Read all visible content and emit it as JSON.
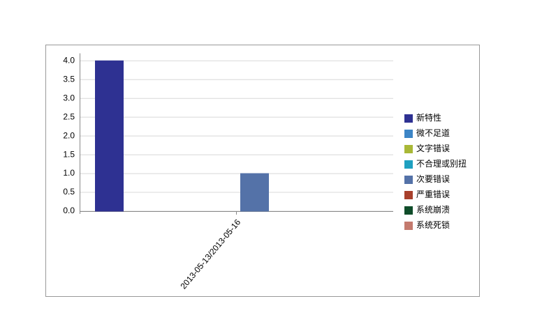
{
  "chart_data": {
    "type": "bar",
    "categories": [
      "2013-05-13/2013-05-16"
    ],
    "series": [
      {
        "name": "新特性",
        "color": "#2e3192",
        "values": [
          4
        ]
      },
      {
        "name": "微不足道",
        "color": "#3d85c6",
        "values": [
          0
        ]
      },
      {
        "name": "文字错误",
        "color": "#a9b837",
        "values": [
          0
        ]
      },
      {
        "name": "不合理或别扭",
        "color": "#1fa0c0",
        "values": [
          0
        ]
      },
      {
        "name": "次要错误",
        "color": "#5472a8",
        "values": [
          1
        ]
      },
      {
        "name": "严重错误",
        "color": "#a8402c",
        "values": [
          0
        ]
      },
      {
        "name": "系统崩溃",
        "color": "#0f4d2a",
        "values": [
          0
        ]
      },
      {
        "name": "系统死锁",
        "color": "#c47a6e",
        "values": [
          0
        ]
      }
    ],
    "ylim": [
      0,
      4.2
    ],
    "yticks": [
      {
        "value": 0,
        "label": "0.0"
      },
      0.5,
      {
        "value": 1,
        "label": "1.0"
      },
      1.5,
      {
        "value": 2,
        "label": "2.0"
      },
      2.5,
      {
        "value": 3,
        "label": "3.0"
      },
      3.5,
      {
        "value": 4,
        "label": "4.0"
      }
    ],
    "grid": true,
    "legend": "right"
  }
}
